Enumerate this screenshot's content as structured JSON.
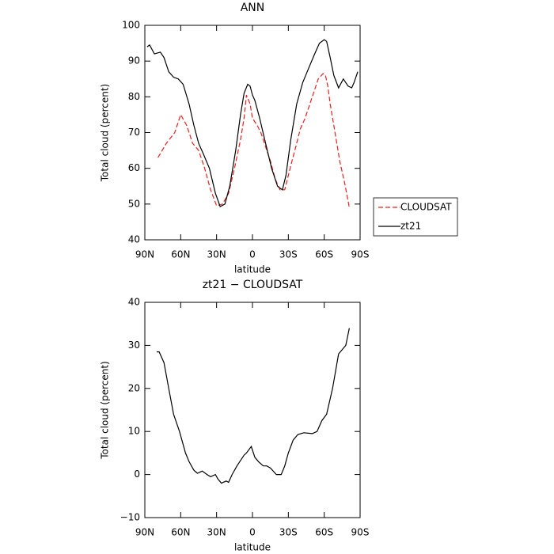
{
  "chart_data": [
    {
      "type": "line",
      "title": "ANN",
      "xlabel": "latitude",
      "ylabel": "Total cloud (percent)",
      "xlim": [
        90,
        -90
      ],
      "ylim": [
        40,
        100
      ],
      "xticks": [
        {
          "value": 90,
          "label": "90N"
        },
        {
          "value": 60,
          "label": "60N"
        },
        {
          "value": 30,
          "label": "30N"
        },
        0,
        {
          "value": -30,
          "label": "30S"
        },
        {
          "value": -60,
          "label": "60S"
        },
        {
          "value": -90,
          "label": "90S"
        }
      ],
      "yticks": [
        40,
        50,
        60,
        70,
        80,
        90,
        100
      ],
      "legend": "right",
      "series": [
        {
          "name": "CLOUDSAT",
          "color": "#e8201e",
          "dash": true,
          "x": [
            79,
            72,
            65,
            60,
            55,
            50,
            45,
            40,
            35,
            30,
            25,
            20,
            15,
            10,
            7,
            5,
            2,
            0,
            -4,
            -7,
            -11,
            -15,
            -19,
            -23,
            -27,
            -30,
            -33,
            -37,
            -40,
            -44,
            -48,
            -52,
            -55,
            -59,
            -61,
            -63,
            -65,
            -68,
            -71,
            -73,
            -77,
            -81
          ],
          "values": [
            63,
            67,
            70,
            75,
            72,
            67,
            65,
            60,
            54,
            49.5,
            50,
            53,
            60,
            68,
            74,
            80.5,
            78,
            74,
            72,
            70,
            66,
            62,
            57,
            54,
            54,
            58,
            62,
            67,
            71,
            74,
            78,
            82,
            85,
            86.5,
            86,
            83,
            78,
            72,
            66,
            62,
            56,
            49
          ]
        },
        {
          "name": "zt21",
          "color": "#000000",
          "dash": false,
          "x": [
            88,
            86,
            82,
            77,
            74,
            70,
            66,
            62,
            58,
            53,
            49,
            45,
            41,
            36,
            31,
            27,
            23,
            19,
            14,
            10,
            7,
            4,
            2,
            0,
            -2,
            -6,
            -11,
            -16,
            -21,
            -25,
            -28,
            -32,
            -37,
            -42,
            -47,
            -52,
            -56,
            -60,
            -62,
            -65,
            -68,
            -72,
            -76,
            -80,
            -83,
            -85,
            -88
          ],
          "values": [
            94,
            94.5,
            92,
            92.5,
            91,
            87,
            85.5,
            85,
            83.5,
            78,
            72,
            67,
            64,
            60,
            53,
            49.3,
            50,
            55,
            65,
            75,
            81,
            83.5,
            83,
            80.5,
            79,
            74,
            67,
            60,
            55,
            54,
            58,
            68,
            78,
            84,
            88,
            92,
            95,
            96,
            95.5,
            91,
            86,
            82.5,
            85,
            83,
            82.5,
            84,
            87
          ]
        }
      ]
    },
    {
      "type": "line",
      "title": "zt21 − CLOUDSAT",
      "xlabel": "latitude",
      "ylabel": "Total cloud (percent)",
      "xlim": [
        90,
        -90
      ],
      "ylim": [
        -10,
        40
      ],
      "xticks": [
        {
          "value": 90,
          "label": "90N"
        },
        {
          "value": 60,
          "label": "60N"
        },
        {
          "value": 30,
          "label": "30N"
        },
        0,
        {
          "value": -30,
          "label": "30S"
        },
        {
          "value": -60,
          "label": "60S"
        },
        {
          "value": -90,
          "label": "90S"
        }
      ],
      "yticks": [
        {
          "value": -10,
          "label": "−10"
        },
        0,
        10,
        20,
        30,
        40
      ],
      "series": [
        {
          "name": "zt21 − CLOUDSAT",
          "color": "#000000",
          "dash": false,
          "x": [
            80,
            78,
            74,
            70,
            66,
            61,
            56,
            53,
            49,
            46,
            42,
            38,
            35,
            31,
            29,
            26,
            22,
            20,
            17,
            13,
            7,
            5,
            1,
            -2,
            -5,
            -9,
            -12,
            -15,
            -20,
            -24,
            -27,
            -30,
            -34,
            -38,
            -43,
            -50,
            -54,
            -58,
            -62,
            -67,
            -72,
            -78,
            -81
          ],
          "values": [
            28.5,
            28.5,
            26,
            20,
            14,
            10,
            5,
            3,
            1,
            0.3,
            0.8,
            0,
            -0.5,
            0,
            -1,
            -2,
            -1.5,
            -1.8,
            0,
            2,
            4.5,
            5,
            6.5,
            4,
            3,
            2,
            2,
            1.5,
            0,
            0,
            2,
            5,
            8,
            9.3,
            9.7,
            9.5,
            10,
            12.5,
            14,
            20,
            28,
            30,
            34
          ]
        }
      ]
    }
  ]
}
